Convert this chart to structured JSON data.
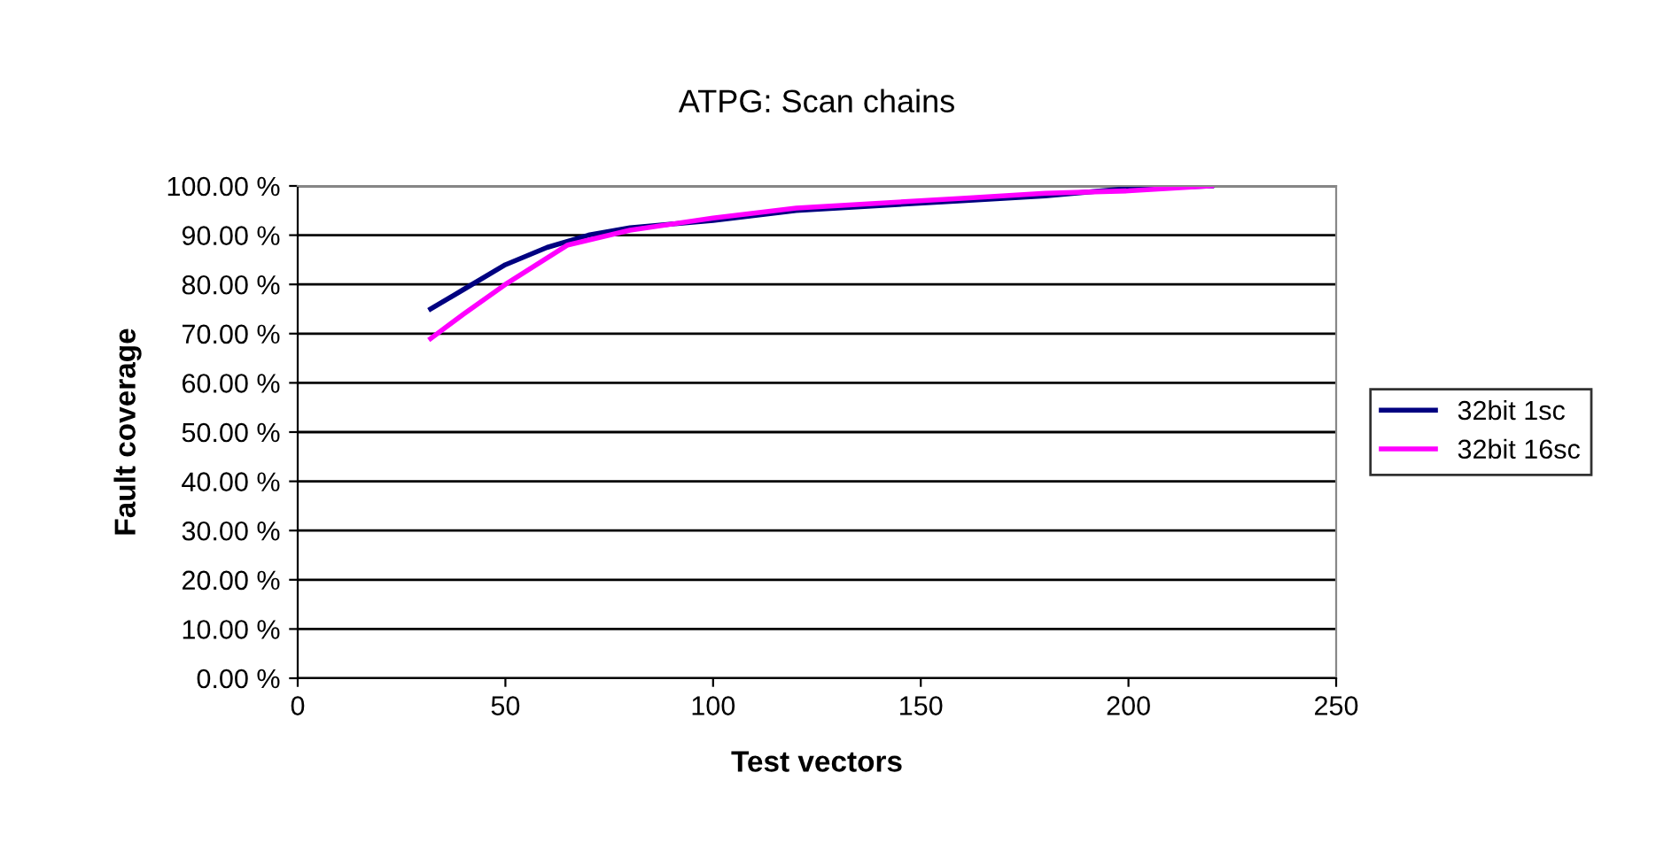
{
  "chart_data": {
    "type": "line",
    "title": "ATPG: Scan chains",
    "xlabel": "Test vectors",
    "ylabel": "Fault coverage",
    "xlim": [
      0,
      250
    ],
    "xticks": [
      0,
      50,
      100,
      150,
      200,
      250
    ],
    "ylim": [
      0,
      100
    ],
    "yticks": [
      {
        "value": 0,
        "label": "0.00 %"
      },
      {
        "value": 10,
        "label": "10.00 %"
      },
      {
        "value": 20,
        "label": "20.00 %"
      },
      {
        "value": 30,
        "label": "30.00 %"
      },
      {
        "value": 40,
        "label": "40.00 %"
      },
      {
        "value": 50,
        "label": "50.00 %"
      },
      {
        "value": 60,
        "label": "60.00 %"
      },
      {
        "value": 70,
        "label": "70.00 %"
      },
      {
        "value": 80,
        "label": "80.00 %"
      },
      {
        "value": 90,
        "label": "90.00 %"
      },
      {
        "value": 100,
        "label": "100.00 %"
      }
    ],
    "grid": "y",
    "legend": "right",
    "marker": "none",
    "line_style": "solid",
    "series": [
      {
        "name": "32bit 1sc",
        "color": "#000080",
        "x": [
          32,
          40,
          50,
          60,
          70,
          80,
          100,
          120,
          140,
          160,
          180,
          200,
          220
        ],
        "values": [
          75,
          79,
          84,
          87.5,
          90,
          91.5,
          93,
          95,
          96,
          97,
          98,
          99.5,
          100
        ]
      },
      {
        "name": "32bit 16sc",
        "color": "#ff00ff",
        "x": [
          32,
          40,
          50,
          65,
          80,
          100,
          120,
          140,
          160,
          180,
          200,
          220
        ],
        "values": [
          69,
          74,
          80,
          88,
          91,
          93.5,
          95.5,
          96.5,
          97.5,
          98.5,
          99,
          100
        ]
      }
    ]
  }
}
